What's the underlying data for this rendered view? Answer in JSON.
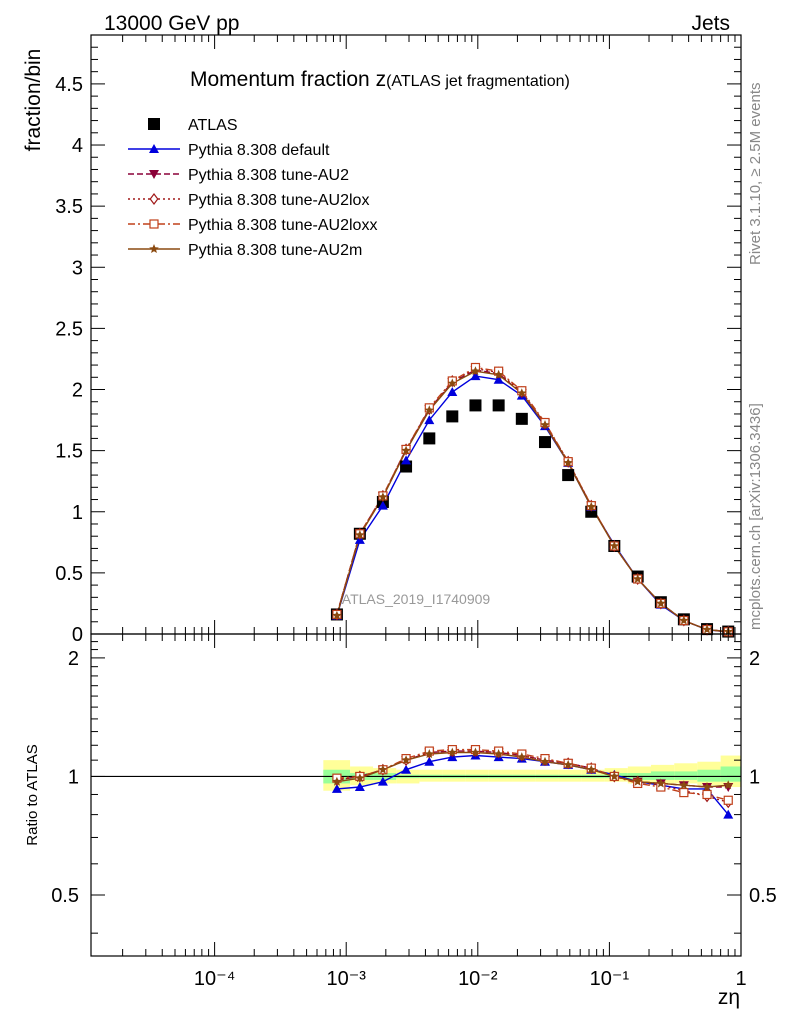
{
  "header": {
    "left": "13000 GeV pp",
    "right": "Jets"
  },
  "side_labels": {
    "rivet": "Rivet 3.1.10, ≥ 2.5M events",
    "mcplots": "mcplots.cern.ch [arXiv:1306.3436]"
  },
  "watermark": "ATLAS_2019_I1740909",
  "colors": {
    "ATLAS": "#000000",
    "Pythia 8.308 default": "#0000dd",
    "Pythia 8.308 tune-AU2": "#8b0038",
    "Pythia 8.308 tune-AU2lox": "#a01818",
    "Pythia 8.308 tune-AU2loxx": "#c0401a",
    "Pythia 8.308 tune-AU2m": "#8b4a10",
    "band_yellow": "#ffff99",
    "band_green": "#99ff99"
  },
  "chart_data": [
    {
      "type": "line",
      "title_main": "Momentum fraction z",
      "title_sub": "(ATLAS jet fragmentation)",
      "ylabel": "fraction/bin",
      "x_scale": "log",
      "xlim": [
        1.15e-05,
        1.0
      ],
      "ylim": [
        0,
        4.9
      ],
      "yticks": [
        0,
        0.5,
        1,
        1.5,
        2,
        2.5,
        3,
        3.5,
        4,
        4.5
      ],
      "ytick_labels": [
        "0",
        "0.5",
        "1",
        "1.5",
        "2",
        "2.5",
        "3",
        "3.5",
        "4",
        "4.5"
      ],
      "legend_position": "top-left",
      "x": [
        0.00085,
        0.00127,
        0.0019,
        0.00285,
        0.00428,
        0.0064,
        0.0096,
        0.0144,
        0.0216,
        0.0324,
        0.0486,
        0.0728,
        0.109,
        0.164,
        0.246,
        0.368,
        0.552,
        0.8
      ],
      "series": [
        {
          "name": "ATLAS",
          "marker": "square",
          "line": "none",
          "values": [
            0.16,
            0.82,
            1.08,
            1.37,
            1.6,
            1.78,
            1.87,
            1.87,
            1.76,
            1.57,
            1.3,
            1.0,
            0.72,
            0.47,
            0.26,
            0.12,
            0.04,
            0.02
          ]
        },
        {
          "name": "Pythia 8.308 default",
          "marker": "triangle-up",
          "line": "solid",
          "values": [
            0.15,
            0.77,
            1.05,
            1.42,
            1.75,
            1.98,
            2.11,
            2.08,
            1.95,
            1.7,
            1.4,
            1.04,
            0.73,
            0.45,
            0.24,
            0.11,
            0.035,
            0.016
          ]
        },
        {
          "name": "Pythia 8.308 tune-AU2",
          "marker": "triangle-down",
          "line": "dashed",
          "values": [
            0.16,
            0.82,
            1.13,
            1.51,
            1.84,
            2.06,
            2.16,
            2.13,
            1.97,
            1.72,
            1.4,
            1.05,
            0.72,
            0.45,
            0.25,
            0.11,
            0.037,
            0.019
          ]
        },
        {
          "name": "Pythia 8.308 tune-AU2lox",
          "marker": "diamond-open",
          "line": "dotted",
          "values": [
            0.16,
            0.82,
            1.13,
            1.51,
            1.84,
            2.07,
            2.17,
            2.14,
            1.98,
            1.72,
            1.41,
            1.05,
            0.72,
            0.45,
            0.25,
            0.11,
            0.036,
            0.018
          ]
        },
        {
          "name": "Pythia 8.308 tune-AU2loxx",
          "marker": "square-open",
          "line": "dashdot",
          "values": [
            0.16,
            0.82,
            1.13,
            1.51,
            1.85,
            2.07,
            2.18,
            2.15,
            1.99,
            1.73,
            1.41,
            1.05,
            0.72,
            0.45,
            0.25,
            0.11,
            0.036,
            0.018
          ]
        },
        {
          "name": "Pythia 8.308 tune-AU2m",
          "marker": "star",
          "line": "solid",
          "values": [
            0.15,
            0.81,
            1.12,
            1.5,
            1.83,
            2.05,
            2.15,
            2.12,
            1.97,
            1.71,
            1.4,
            1.04,
            0.72,
            0.45,
            0.25,
            0.11,
            0.036,
            0.019
          ]
        }
      ]
    },
    {
      "type": "line",
      "ylabel": "Ratio to ATLAS",
      "xlabel": "zη",
      "x_scale": "log",
      "xlim": [
        1.15e-05,
        1.0
      ],
      "xtick_labels": [
        "10⁻⁴",
        "10⁻³",
        "10⁻²",
        "10⁻¹",
        "1"
      ],
      "xticks": [
        0.0001,
        0.001,
        0.01,
        0.1,
        1
      ],
      "ylim": [
        0.35,
        2.3
      ],
      "y_scale": "log",
      "yticks": [
        0.5,
        1,
        2
      ],
      "ytick_labels": [
        "0.5",
        "1",
        "2"
      ],
      "reference_line": 1,
      "band": {
        "x": [
          0.00067,
          0.00107,
          0.0016,
          0.0024,
          0.0036,
          0.0054,
          0.0081,
          0.0121,
          0.0182,
          0.0273,
          0.041,
          0.0615,
          0.092,
          0.138,
          0.207,
          0.311,
          0.466,
          0.7,
          1.0
        ],
        "yellow_low": [
          0.92,
          0.95,
          0.96,
          0.96,
          0.97,
          0.97,
          0.97,
          0.97,
          0.97,
          0.97,
          0.97,
          0.97,
          0.97,
          0.96,
          0.96,
          0.96,
          0.95,
          0.94
        ],
        "yellow_high": [
          1.1,
          1.06,
          1.05,
          1.04,
          1.04,
          1.04,
          1.04,
          1.04,
          1.04,
          1.04,
          1.04,
          1.04,
          1.05,
          1.06,
          1.07,
          1.08,
          1.09,
          1.13
        ],
        "green_low": [
          0.96,
          0.98,
          0.98,
          0.99,
          0.99,
          0.99,
          0.99,
          0.99,
          0.99,
          0.99,
          0.99,
          0.99,
          0.99,
          0.98,
          0.98,
          0.98,
          0.97,
          0.97
        ],
        "green_high": [
          1.04,
          1.02,
          1.02,
          1.01,
          1.01,
          1.01,
          1.01,
          1.01,
          1.01,
          1.01,
          1.01,
          1.01,
          1.02,
          1.02,
          1.03,
          1.03,
          1.04,
          1.06
        ]
      },
      "x": [
        0.00085,
        0.00127,
        0.0019,
        0.00285,
        0.00428,
        0.0064,
        0.0096,
        0.0144,
        0.0216,
        0.0324,
        0.0486,
        0.0728,
        0.109,
        0.164,
        0.246,
        0.368,
        0.552,
        0.8
      ],
      "series": [
        {
          "name": "Pythia 8.308 default",
          "values": [
            0.93,
            0.94,
            0.97,
            1.04,
            1.09,
            1.12,
            1.13,
            1.12,
            1.11,
            1.09,
            1.07,
            1.04,
            1.01,
            0.97,
            0.95,
            0.93,
            0.93,
            0.8
          ]
        },
        {
          "name": "Pythia 8.308 tune-AU2",
          "values": [
            0.98,
            1.0,
            1.04,
            1.1,
            1.15,
            1.16,
            1.16,
            1.15,
            1.13,
            1.1,
            1.08,
            1.05,
            1.0,
            0.97,
            0.96,
            0.95,
            0.94,
            0.94
          ]
        },
        {
          "name": "Pythia 8.308 tune-AU2lox",
          "values": [
            0.98,
            1.0,
            1.04,
            1.1,
            1.15,
            1.16,
            1.16,
            1.15,
            1.13,
            1.1,
            1.08,
            1.05,
            1.0,
            0.97,
            0.95,
            0.92,
            0.89,
            0.86
          ]
        },
        {
          "name": "Pythia 8.308 tune-AU2loxx",
          "values": [
            0.99,
            1.0,
            1.04,
            1.11,
            1.16,
            1.17,
            1.17,
            1.16,
            1.14,
            1.11,
            1.08,
            1.05,
            1.0,
            0.96,
            0.94,
            0.91,
            0.9,
            0.87
          ]
        },
        {
          "name": "Pythia 8.308 tune-AU2m",
          "values": [
            0.97,
            0.99,
            1.04,
            1.1,
            1.14,
            1.15,
            1.15,
            1.14,
            1.12,
            1.09,
            1.07,
            1.04,
            1.0,
            0.97,
            0.96,
            0.95,
            0.94,
            0.95
          ]
        }
      ]
    }
  ]
}
